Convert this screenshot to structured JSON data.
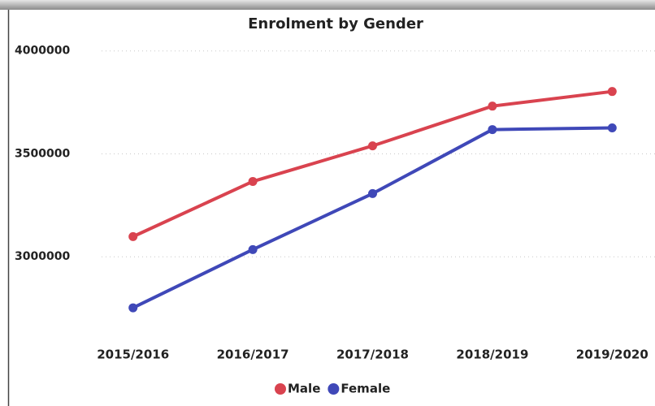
{
  "chart_data": {
    "type": "line",
    "title": "Enrolment by Gender",
    "categories": [
      "2015/2016",
      "2016/2017",
      "2017/2018",
      "2018/2019",
      "2019/2020"
    ],
    "series": [
      {
        "name": "Male",
        "color": "#d9434f",
        "values": [
          3098000,
          3366000,
          3539000,
          3732000,
          3803000
        ]
      },
      {
        "name": "Female",
        "color": "#3f48b8",
        "values": [
          2752000,
          3035000,
          3307000,
          3618000,
          3626000
        ]
      }
    ],
    "ylim": [
      2630000,
      4070000
    ],
    "yticks": [
      3000000,
      3500000,
      4000000
    ],
    "grid": true,
    "legend": "bottom"
  }
}
